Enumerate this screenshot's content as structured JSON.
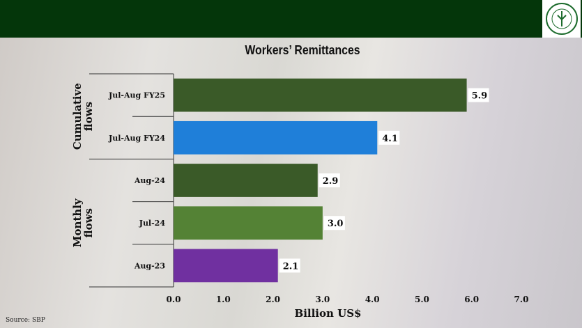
{
  "logo": {
    "text": "STATE BANK OF PAKISTAN"
  },
  "chart_data": {
    "type": "bar",
    "orientation": "horizontal",
    "title": "Workers’ Remittances",
    "xlabel": "Billion US$",
    "xlim": [
      0,
      7
    ],
    "xticks": [
      "0.0",
      "1.0",
      "2.0",
      "3.0",
      "4.0",
      "5.0",
      "6.0",
      "7.0"
    ],
    "groups": [
      {
        "label": "Cumulative flows",
        "categories": [
          "Jul-Aug FY25",
          "Jul-Aug FY24"
        ]
      },
      {
        "label": "Monthly flows",
        "categories": [
          "Aug-24",
          "Jul-24",
          "Aug-23"
        ]
      }
    ],
    "categories": [
      "Jul-Aug FY25",
      "Jul-Aug FY24",
      "Aug-24",
      "Jul-24",
      "Aug-23"
    ],
    "values": [
      5.9,
      4.1,
      2.9,
      3.0,
      2.1
    ],
    "data_labels": [
      "5.9",
      "4.1",
      "2.9",
      "3.0",
      "2.1"
    ],
    "colors": [
      "#3a5a28",
      "#1f7fd9",
      "#3a5a28",
      "#548235",
      "#7030a0"
    ],
    "grid": false
  },
  "source": "Source: SBP"
}
